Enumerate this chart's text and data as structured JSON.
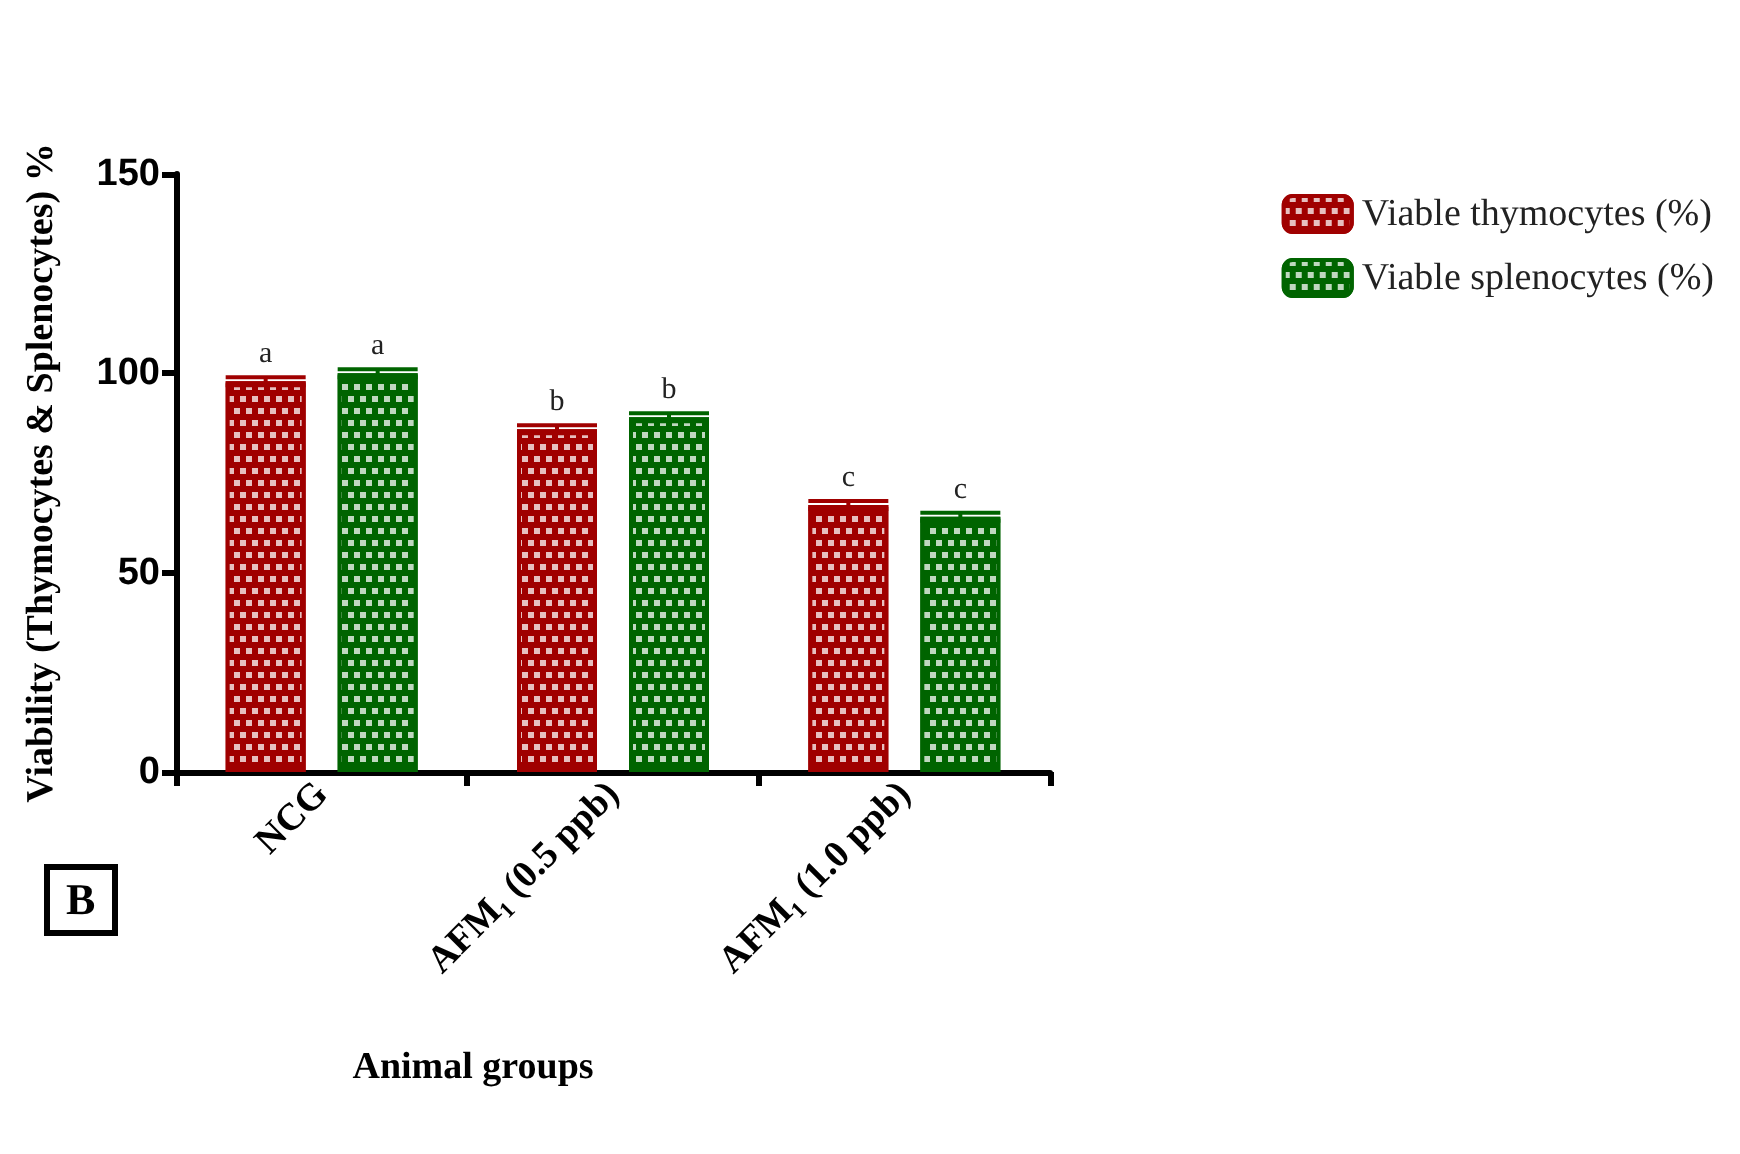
{
  "chart_data": {
    "type": "bar",
    "ylabel": "Viability (Thymocytes & Splenocytes) %",
    "xlabel": "Animal groups",
    "categories": [
      "NCG",
      "AFM₁ (0.5 ppb)",
      "AFM₁ (1.0 ppb)"
    ],
    "series": [
      {
        "name": "Viable thymocytes (%)",
        "color": "#a00000",
        "values": [
          98,
          86,
          67
        ],
        "errors": [
          1,
          1,
          1
        ],
        "value_labels": [
          "a",
          "b",
          "c"
        ]
      },
      {
        "name": "Viable splenocytes (%)",
        "color": "#006400",
        "values": [
          100,
          89,
          64
        ],
        "errors": [
          1,
          1,
          1
        ],
        "value_labels": [
          "a",
          "b",
          "c"
        ]
      }
    ],
    "ylim": [
      0,
      150
    ],
    "yticks": [
      0,
      50,
      100,
      150
    ],
    "grid": false,
    "legend": "top right",
    "annotations": [
      "B"
    ]
  }
}
